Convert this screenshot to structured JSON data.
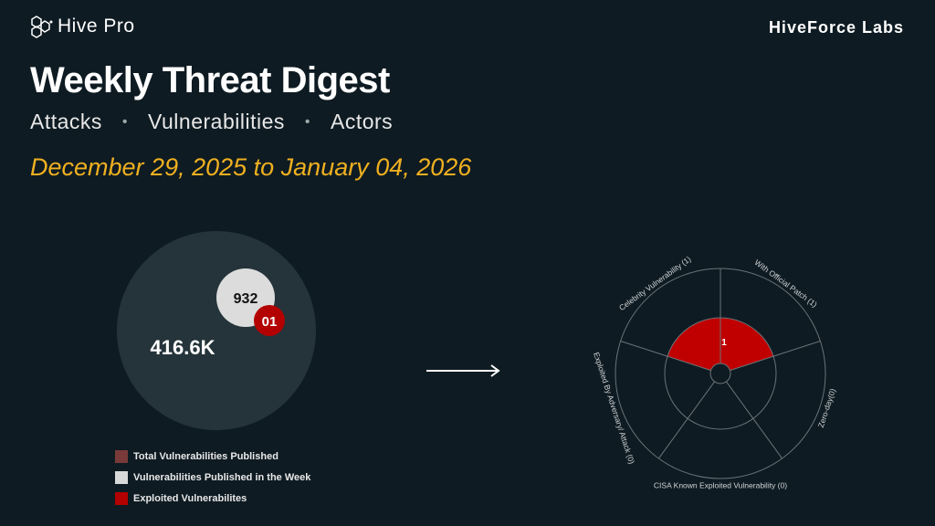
{
  "header": {
    "logo_text": "Hive Pro",
    "brand_right": "HiveForce Labs"
  },
  "title": "Weekly Threat Digest",
  "subtitle": [
    "Attacks",
    "Vulnerabilities",
    "Actors"
  ],
  "date_range": "December 29, 2025 to January 04, 2026",
  "bubbles": {
    "total": "416.6K",
    "week": "932",
    "exploited": "01"
  },
  "legend": [
    {
      "label": "Total Vulnerabilities Published",
      "color": "#7a3a3a"
    },
    {
      "label": "Vulnerabilities Published in the Week",
      "color": "#d9d9d9"
    },
    {
      "label": "Exploited Vulnerabilites",
      "color": "#b30000"
    }
  ],
  "chart_data": {
    "type": "polar-area",
    "categories": [
      "With Official Patch (1)",
      "Zero-day(0)",
      "CISA Known Exploited Vulnerability (0)",
      "Exploited By Adversary/ Attack (0)",
      "Celebrity Vulnerability (1)"
    ],
    "values": [
      1,
      0,
      0,
      0,
      1
    ],
    "center_label": "1",
    "fill_color": "#c00000"
  }
}
